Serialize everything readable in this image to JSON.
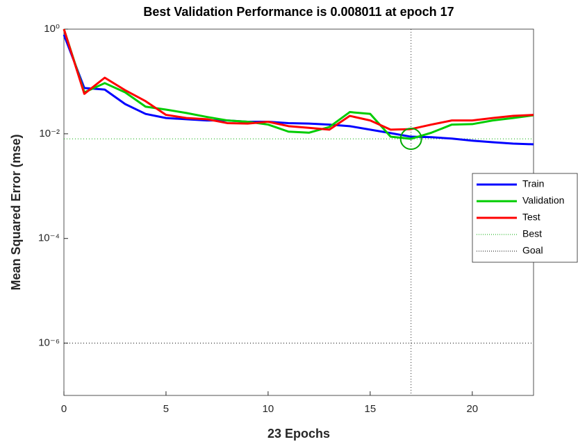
{
  "chart_data": {
    "type": "line",
    "title": "Best Validation Performance is 0.008011 at epoch 17",
    "x_label": "23 Epochs",
    "y_label": "Mean Squared Error  (mse)",
    "x": [
      0,
      1,
      2,
      3,
      4,
      5,
      6,
      7,
      8,
      9,
      10,
      11,
      12,
      13,
      14,
      15,
      16,
      17,
      18,
      19,
      20,
      21,
      22,
      23
    ],
    "xlim": [
      0,
      23
    ],
    "xticks": [
      0,
      5,
      10,
      15,
      20
    ],
    "ylim": [
      1e-07,
      1
    ],
    "yticks": [
      {
        "value": 1,
        "label": "10⁰"
      },
      {
        "value": 0.01,
        "label": "10⁻²"
      },
      {
        "value": 0.0001,
        "label": "10⁻⁴"
      },
      {
        "value": 1e-06,
        "label": "10⁻⁶"
      }
    ],
    "log_y": true,
    "series": [
      {
        "name": "Train",
        "color": "#0000ff",
        "values": [
          0.78,
          0.075,
          0.07,
          0.037,
          0.024,
          0.02,
          0.019,
          0.018,
          0.018,
          0.017,
          0.017,
          0.016,
          0.0157,
          0.015,
          0.014,
          0.012,
          0.0103,
          0.0088,
          0.0086,
          0.0081,
          0.0074,
          0.0069,
          0.0065,
          0.0063
        ]
      },
      {
        "name": "Validation",
        "color": "#00cc00",
        "values": [
          1.0,
          0.062,
          0.093,
          0.062,
          0.033,
          0.029,
          0.025,
          0.021,
          0.018,
          0.017,
          0.015,
          0.011,
          0.0105,
          0.0135,
          0.026,
          0.024,
          0.0088,
          0.008011,
          0.0105,
          0.015,
          0.0153,
          0.018,
          0.02,
          0.0226
        ]
      },
      {
        "name": "Test",
        "color": "#ff0000",
        "values": [
          1.0,
          0.058,
          0.118,
          0.068,
          0.042,
          0.023,
          0.02,
          0.019,
          0.016,
          0.0157,
          0.017,
          0.014,
          0.013,
          0.012,
          0.022,
          0.018,
          0.012,
          0.0123,
          0.015,
          0.018,
          0.018,
          0.02,
          0.022,
          0.023
        ]
      }
    ],
    "best": {
      "name": "Best",
      "color": "#00aa00",
      "epoch": 17,
      "value": 0.008011
    },
    "goal": {
      "name": "Goal",
      "color": "#000000",
      "value": 1e-06
    },
    "legend_position": "right"
  }
}
